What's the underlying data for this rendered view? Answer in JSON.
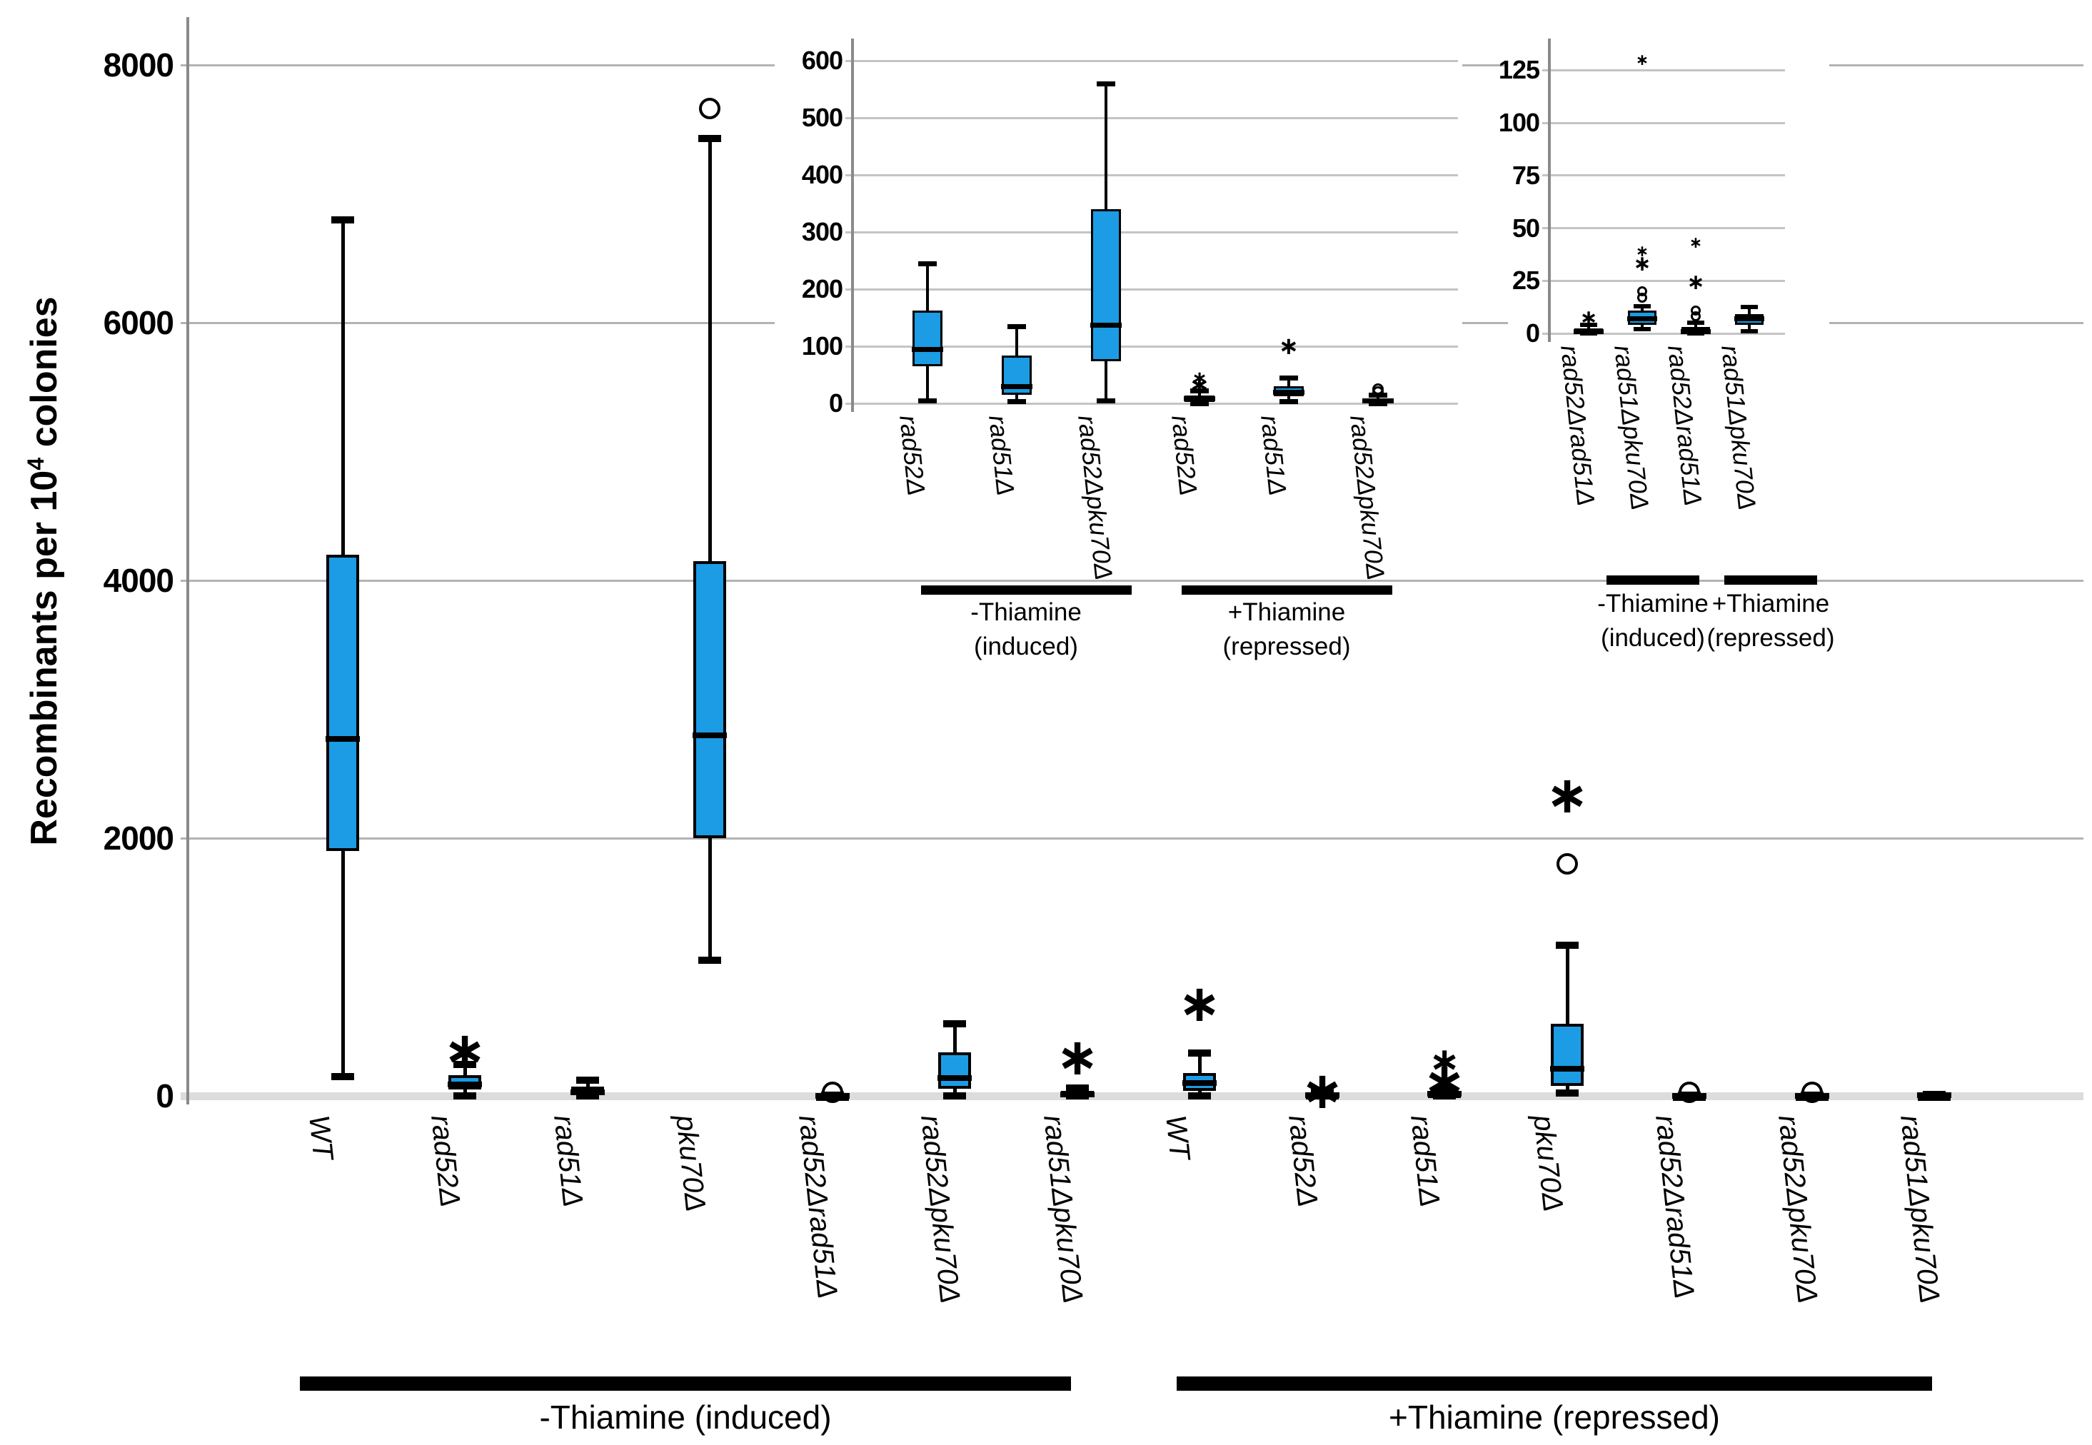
{
  "y_axis_title": {
    "prefix": "Recombinants per 10",
    "sup": "4",
    "suffix": " colonies"
  },
  "accent_color": "#1b9ce5",
  "chart_data": [
    {
      "id": "main",
      "type": "box",
      "title": "",
      "xlabel": "",
      "ylabel": "Recombinants per 10⁴ colonies",
      "yticks": [
        0,
        2000,
        4000,
        6000,
        8000
      ],
      "ylim": [
        0,
        8400
      ],
      "grid": true,
      "legend_position": "none",
      "categories": [
        "WT",
        "rad52Δ",
        "rad51Δ",
        "pku70Δ",
        "rad52Δrad51Δ",
        "rad52Δpku70Δ",
        "rad51Δpku70Δ",
        "WT",
        "rad52Δ",
        "rad51Δ",
        "pku70Δ",
        "rad52Δrad51Δ",
        "rad52Δpku70Δ",
        "rad51Δpku70Δ"
      ],
      "groups": [
        {
          "label": "-Thiamine (induced)"
        },
        {
          "label": "+Thiamine (repressed)"
        }
      ],
      "boxes": [
        {
          "label": "WT",
          "group": 0,
          "whislo": 150,
          "q1": 1900,
          "med": 2770,
          "q3": 4200,
          "whishi": 6800,
          "outliers_circle": [],
          "outliers_star": []
        },
        {
          "label": "rad52Δ",
          "group": 0,
          "whislo": 0,
          "q1": 50,
          "med": 90,
          "q3": 160,
          "whishi": 245,
          "outliers_circle": [],
          "outliers_star": [
            350
          ]
        },
        {
          "label": "rad51Δ",
          "group": 0,
          "whislo": 0,
          "q1": 12,
          "med": 25,
          "q3": 70,
          "whishi": 120,
          "outliers_circle": [],
          "outliers_star": []
        },
        {
          "label": "pku70Δ",
          "group": 0,
          "whislo": 1050,
          "q1": 2000,
          "med": 2800,
          "q3": 4150,
          "whishi": 7430,
          "outliers_circle": [
            7660
          ],
          "outliers_star": []
        },
        {
          "label": "rad52Δrad51Δ",
          "group": 0,
          "whislo": 0,
          "q1": 0,
          "med": 2,
          "q3": 5,
          "whishi": 8,
          "outliers_circle": [
            30
          ],
          "outliers_star": []
        },
        {
          "label": "rad52Δpku70Δ",
          "group": 0,
          "whislo": 0,
          "q1": 55,
          "med": 137,
          "q3": 340,
          "whishi": 560,
          "outliers_circle": [],
          "outliers_star": []
        },
        {
          "label": "rad51Δpku70Δ",
          "group": 0,
          "whislo": 0,
          "q1": 2,
          "med": 10,
          "q3": 40,
          "whishi": 60,
          "outliers_circle": [],
          "outliers_star": [
            300
          ]
        },
        {
          "label": "WT",
          "group": 1,
          "whislo": 0,
          "q1": 40,
          "med": 100,
          "q3": 180,
          "whishi": 330,
          "outliers_circle": [],
          "outliers_star": [
            715
          ]
        },
        {
          "label": "rad52Δ",
          "group": 1,
          "whislo": 0,
          "q1": 2,
          "med": 8,
          "q3": 15,
          "whishi": 25,
          "outliers_circle": [],
          "outliers_star": [
            40
          ]
        },
        {
          "label": "rad51Δ",
          "group": 1,
          "whislo": 0,
          "q1": 10,
          "med": 18,
          "q3": 25,
          "whishi": 37,
          "outliers_circle": [],
          "outliers_star": [
            110,
            265
          ]
        },
        {
          "label": "pku70Δ",
          "group": 1,
          "whislo": 20,
          "q1": 80,
          "med": 210,
          "q3": 560,
          "whishi": 1170,
          "outliers_circle": [
            1800
          ],
          "outliers_star": [
            2330
          ]
        },
        {
          "label": "rad52Δrad51Δ",
          "group": 1,
          "whislo": 0,
          "q1": 0,
          "med": 2,
          "q3": 4,
          "whishi": 7,
          "outliers_circle": [
            30
          ],
          "outliers_star": []
        },
        {
          "label": "rad52Δpku70Δ",
          "group": 1,
          "whislo": 0,
          "q1": 0,
          "med": 2,
          "q3": 4,
          "whishi": 7,
          "outliers_circle": [
            25
          ],
          "outliers_star": []
        },
        {
          "label": "rad51Δpku70Δ",
          "group": 1,
          "whislo": 0,
          "q1": 1,
          "med": 4,
          "q3": 8,
          "whishi": 12,
          "outliers_circle": [],
          "outliers_star": []
        }
      ]
    },
    {
      "id": "inset1",
      "type": "box",
      "title": "",
      "yticks": [
        0,
        100,
        200,
        300,
        400,
        500,
        600
      ],
      "ylim": [
        0,
        640
      ],
      "grid": true,
      "categories": [
        "rad52Δ",
        "rad51Δ",
        "rad52Δpku70Δ",
        "rad52Δ",
        "rad51Δ",
        "rad52Δpku70Δ"
      ],
      "groups": [
        {
          "label_lines": [
            "-Thiamine",
            "(induced)"
          ]
        },
        {
          "label_lines": [
            "+Thiamine",
            "(repressed)"
          ]
        }
      ],
      "boxes": [
        {
          "label": "rad52Δ",
          "group": 0,
          "whislo": 5,
          "q1": 65,
          "med": 95,
          "q3": 163,
          "whishi": 244,
          "outliers_circle": [],
          "outliers_star": []
        },
        {
          "label": "rad51Δ",
          "group": 0,
          "whislo": 3,
          "q1": 15,
          "med": 30,
          "q3": 84,
          "whishi": 135,
          "outliers_circle": [],
          "outliers_star": []
        },
        {
          "label": "rad52Δpku70Δ",
          "group": 0,
          "whislo": 5,
          "q1": 74,
          "med": 137,
          "q3": 340,
          "whishi": 560,
          "outliers_circle": [],
          "outliers_star": []
        },
        {
          "label": "rad52Δ",
          "group": 1,
          "whislo": 0,
          "q1": 3,
          "med": 8,
          "q3": 14,
          "whishi": 22,
          "outliers_circle": [],
          "outliers_star": [
            32,
            45
          ]
        },
        {
          "label": "rad51Δ",
          "group": 1,
          "whislo": 3,
          "q1": 13,
          "med": 20,
          "q3": 30,
          "whishi": 44,
          "outliers_circle": [],
          "outliers_star": [
            100
          ]
        },
        {
          "label": "rad52Δpku70Δ",
          "group": 1,
          "whislo": 0,
          "q1": 1,
          "med": 4,
          "q3": 9,
          "whishi": 14,
          "outliers_circle": [
            20,
            25
          ],
          "outliers_star": []
        }
      ]
    },
    {
      "id": "inset2",
      "type": "box",
      "title": "",
      "yticks": [
        0,
        25,
        50,
        75,
        100,
        125
      ],
      "ylim": [
        0,
        140
      ],
      "grid": true,
      "categories": [
        "rad52Δrad51Δ",
        "rad51Δpku70Δ",
        "rad52Δrad51Δ",
        "rad51Δpku70Δ"
      ],
      "groups": [
        {
          "label_lines": [
            "-Thiamine",
            "(induced)"
          ]
        },
        {
          "label_lines": [
            "+Thiamine",
            "(repressed)"
          ]
        }
      ],
      "boxes": [
        {
          "label": "rad52Δrad51Δ",
          "group": 0,
          "whislo": 0,
          "q1": 0,
          "med": 1,
          "q3": 2.5,
          "whishi": 4,
          "outliers_circle": [],
          "outliers_star": [
            7
          ]
        },
        {
          "label": "rad51Δpku70Δ",
          "group": 0,
          "whislo": 2,
          "q1": 4,
          "med": 7,
          "q3": 11,
          "whishi": 13,
          "outliers_circle": [
            17,
            20
          ],
          "outliers_star": [
            33,
            39,
            130
          ]
        },
        {
          "label": "rad52Δrad51Δ",
          "group": 1,
          "whislo": 0,
          "q1": 0,
          "med": 1,
          "q3": 3,
          "whishi": 5,
          "outliers_circle": [
            8,
            11
          ],
          "outliers_star": [
            24,
            43
          ]
        },
        {
          "label": "rad51Δpku70Δ",
          "group": 1,
          "whislo": 1,
          "q1": 4,
          "med": 7,
          "q3": 9,
          "whishi": 12.5,
          "outliers_circle": [],
          "outliers_star": []
        }
      ]
    }
  ]
}
